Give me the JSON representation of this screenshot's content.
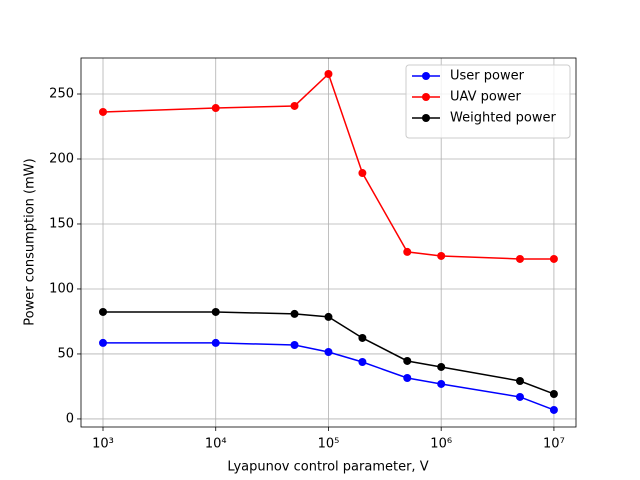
{
  "chart_data": {
    "type": "line",
    "xlabel": "Lyapunov control parameter, V",
    "ylabel": "Power consumption (mW)",
    "xscale": "log",
    "x": [
      1000,
      10000,
      50000,
      100000,
      200000,
      500000,
      1000000,
      5000000,
      10000000
    ],
    "series": [
      {
        "name": "User power",
        "color": "#0000ff",
        "values": [
          58.5,
          58.5,
          56.9,
          51.5,
          43.8,
          31.5,
          26.9,
          16.9,
          6.9
        ]
      },
      {
        "name": "UAV power",
        "color": "#ff0000",
        "values": [
          236.2,
          239.2,
          240.8,
          265.4,
          189.2,
          128.5,
          125.4,
          123.1,
          123.1
        ]
      },
      {
        "name": "Weighted power",
        "color": "#000000",
        "values": [
          82.3,
          82.3,
          80.8,
          78.5,
          62.3,
          44.6,
          40.0,
          29.2,
          19.2
        ]
      }
    ],
    "xlim": [
      638,
      15700000
    ],
    "xticks": [
      {
        "value": 1000,
        "label": "10³"
      },
      {
        "value": 10000,
        "label": "10⁴"
      },
      {
        "value": 100000,
        "label": "10⁵"
      },
      {
        "value": 1000000,
        "label": "10⁶"
      },
      {
        "value": 10000000,
        "label": "10⁷"
      }
    ],
    "ylim": [
      -6.2,
      277.7
    ],
    "yticks": [
      0,
      50,
      100,
      150,
      200,
      250
    ],
    "grid": true,
    "legend": "upper right"
  }
}
